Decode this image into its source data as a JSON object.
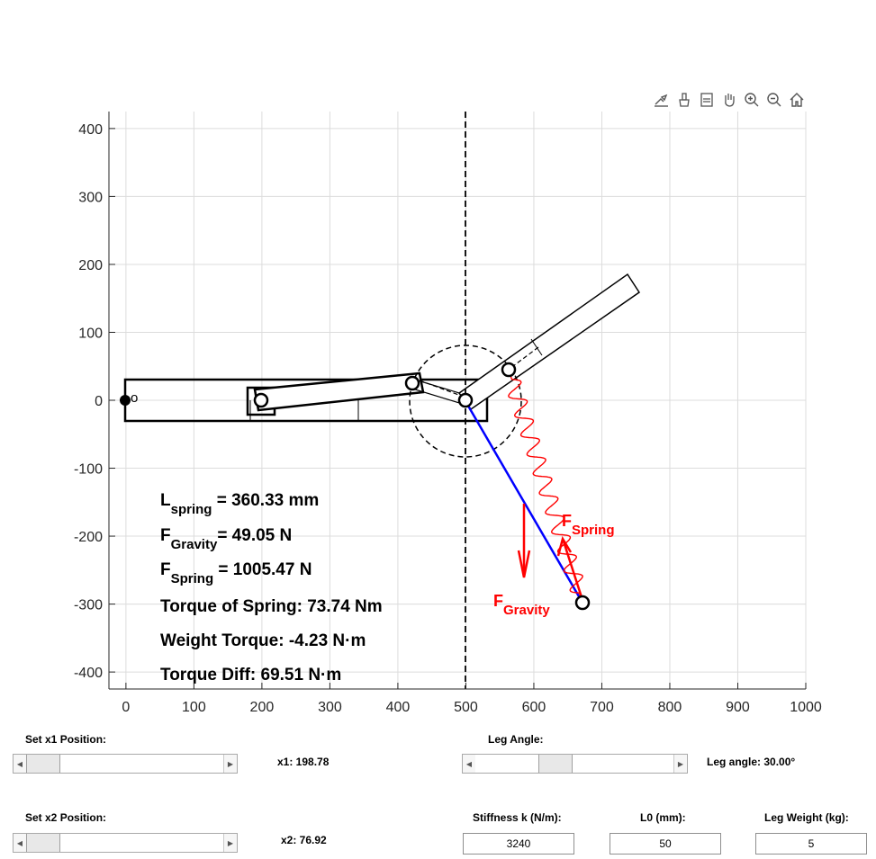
{
  "toolbar": {
    "icons": [
      "export-icon",
      "brush-icon",
      "datatips-icon",
      "pan-icon",
      "zoom-in-icon",
      "zoom-out-icon",
      "home-icon"
    ]
  },
  "plot": {
    "x_ticks": [
      "0",
      "100",
      "200",
      "300",
      "400",
      "500",
      "600",
      "700",
      "800",
      "900",
      "1000"
    ],
    "y_ticks": [
      "400",
      "300",
      "200",
      "100",
      "0",
      "-100",
      "-200",
      "-300",
      "-400"
    ],
    "xlim": [
      -25,
      1000
    ],
    "ylim": [
      -425,
      425
    ],
    "grid": true,
    "point_labels": {
      "origin": "o"
    },
    "force_labels": {
      "spring_main": "F",
      "spring_sub": "Spring",
      "gravity_main": "F",
      "gravity_sub": "Gravity"
    },
    "colors": {
      "spring": "#ff0000",
      "leg_line": "#0000ff",
      "frame": "#000000",
      "grid": "#dcdcdc"
    }
  },
  "annotations": {
    "l_spring_main": "L",
    "l_spring_sub": "spring",
    "l_spring_value": " = 360.33 mm",
    "f_gravity_main": "F",
    "f_gravity_sub": "Gravity",
    "f_gravity_value": "= 49.05 N",
    "f_spring_main": "F",
    "f_spring_sub": "Spring",
    "f_spring_value": " = 1005.47 N",
    "torque_spring": "Torque of Spring: 73.74 Nm",
    "weight_torque": "Weight Torque: -4.23 N·m",
    "torque_diff": "Torque Diff: 69.51 N·m"
  },
  "controls": {
    "x1": {
      "label": "Set x1 Position:",
      "readout": "x1: 198.78",
      "value": 198.78,
      "fraction": 0.0
    },
    "x2": {
      "label": "Set x2 Position:",
      "readout": "x2: 76.92",
      "value": 76.92,
      "fraction": 0.0
    },
    "leg_angle": {
      "label": "Leg Angle:",
      "readout": "Leg angle: 30.00°",
      "value": 30.0,
      "fraction": 0.38
    },
    "stiffness": {
      "label": "Stiffness k (N/m):",
      "value": "3240"
    },
    "l0": {
      "label": "L0 (mm):",
      "value": "50"
    },
    "leg_weight": {
      "label": "Leg Weight (kg):",
      "value": "5"
    }
  }
}
